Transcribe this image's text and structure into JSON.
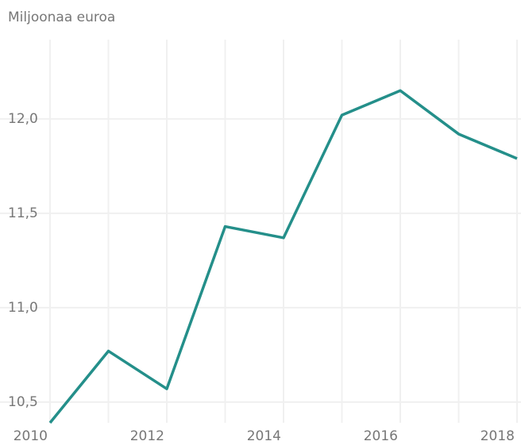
{
  "chart_data": {
    "type": "line",
    "y_axis_label": "Miljoonaa euroa",
    "x": [
      2010,
      2011,
      2012,
      2013,
      2014,
      2015,
      2016,
      2017,
      2018
    ],
    "series": [
      {
        "color": "#248f8a",
        "values": [
          10.39,
          10.77,
          10.57,
          11.43,
          11.37,
          12.02,
          12.15,
          11.92,
          11.79
        ]
      }
    ],
    "xlim": [
      2010,
      2018
    ],
    "xticks": [
      2010,
      2012,
      2014,
      2016,
      2018
    ],
    "xgrid": [
      2010,
      2011,
      2012,
      2013,
      2014,
      2015,
      2016,
      2017,
      2018
    ],
    "ylim": [
      10.39,
      12.42
    ],
    "yticks": [
      {
        "value": 10.5,
        "label": "10,5"
      },
      {
        "value": 11,
        "label": "11,0"
      },
      {
        "value": 11.5,
        "label": "11,5"
      },
      {
        "value": 12,
        "label": "12,0"
      }
    ],
    "grid": true
  }
}
